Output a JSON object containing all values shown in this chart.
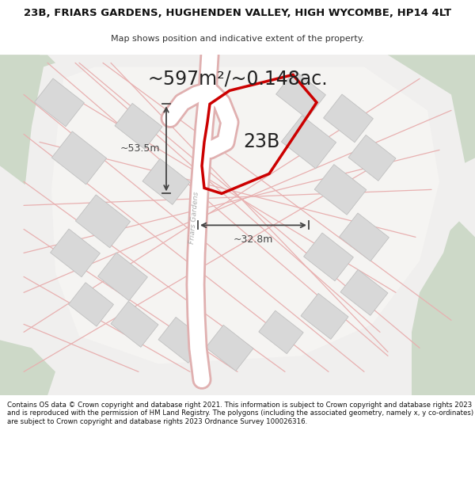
{
  "title": "23B, FRIARS GARDENS, HUGHENDEN VALLEY, HIGH WYCOMBE, HP14 4LT",
  "subtitle": "Map shows position and indicative extent of the property.",
  "area_text": "~597m²/~0.148ac.",
  "label_23b": "23B",
  "road_label": "Friars Gardens",
  "dim_width": "~32.8m",
  "dim_height": "~53.5m",
  "footer": "Contains OS data © Crown copyright and database right 2021. This information is subject to Crown copyright and database rights 2023 and is reproduced with the permission of HM Land Registry. The polygons (including the associated geometry, namely x, y co-ordinates) are subject to Crown copyright and database rights 2023 Ordnance Survey 100026316.",
  "bg_map_color": "#e8ede8",
  "bg_estate_color": "#f0efee",
  "plot_outline_color": "#cc0000",
  "grid_line_color": "#e8b0b0",
  "building_color": "#d8d8d8",
  "building_edge": "#c0c0c0",
  "road_color": "#ffffff",
  "dim_color": "#444444",
  "title_fontsize": 9.5,
  "subtitle_fontsize": 8,
  "area_fontsize": 17,
  "label_fontsize": 17,
  "footer_fontsize": 6.2,
  "road_label_color": "#aaaaaa",
  "green_color": "#cdd9c8"
}
